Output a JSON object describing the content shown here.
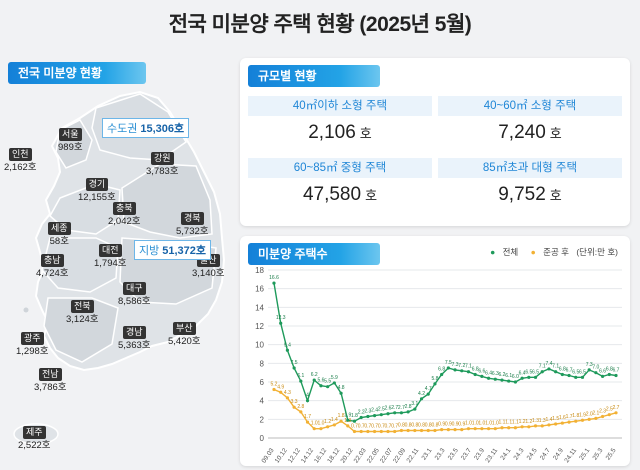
{
  "title": "전국 미분양 주택 현황  (2025년 5월)",
  "left_label": "전국 미분양 현황",
  "map": {
    "callouts": [
      {
        "name": "수도권",
        "value": "15,306호"
      },
      {
        "name": "지방",
        "value": "51,372호"
      }
    ],
    "regions": [
      {
        "name": "서울",
        "value": "989호"
      },
      {
        "name": "인천",
        "value": "2,162호"
      },
      {
        "name": "경기",
        "value": "12,155호"
      },
      {
        "name": "강원",
        "value": "3,783호"
      },
      {
        "name": "충북",
        "value": "2,042호"
      },
      {
        "name": "세종",
        "value": "58호"
      },
      {
        "name": "충남",
        "value": "4,724호"
      },
      {
        "name": "대전",
        "value": "1,794호"
      },
      {
        "name": "경북",
        "value": "5,732호"
      },
      {
        "name": "대구",
        "value": "8,586호"
      },
      {
        "name": "전북",
        "value": "3,124호"
      },
      {
        "name": "울산",
        "value": "3,140호"
      },
      {
        "name": "경남",
        "value": "5,363호"
      },
      {
        "name": "부산",
        "value": "5,420호"
      },
      {
        "name": "광주",
        "value": "1,298호"
      },
      {
        "name": "전남",
        "value": "3,786호"
      },
      {
        "name": "제주",
        "value": "2,522호"
      }
    ]
  },
  "size_card": {
    "title": "규모별 현황",
    "cells": [
      {
        "label": "40㎡이하 소형 주택",
        "value": "2,106",
        "unit": "호"
      },
      {
        "label": "40~60㎡ 소형 주택",
        "value": "7,240",
        "unit": "호"
      },
      {
        "label": "60~85㎡ 중형 주택",
        "value": "47,580",
        "unit": "호"
      },
      {
        "label": "85㎡초과 대형 주택",
        "value": "9,752",
        "unit": "호"
      }
    ]
  },
  "chart_card": {
    "title": "미분양 주택수",
    "legend_total": "전체",
    "legend_completed": "준공 후",
    "unit_note": "(단위:만 호)"
  },
  "colors": {
    "total": "#1e9a5b",
    "completed": "#f2b134",
    "accent": "#1f86d6"
  },
  "chart_data": {
    "type": "line",
    "ylim": [
      0,
      18
    ],
    "yticks": [
      0,
      2,
      4,
      6,
      8,
      10,
      12,
      14,
      16,
      18
    ],
    "x_ticks": [
      "09.03",
      "10.12",
      "12.12",
      "14.12",
      "16.12",
      "18.12",
      "20.12",
      "22.03",
      "22.05",
      "22.07",
      "22.09",
      "22.11",
      "23.1",
      "23.3",
      "23.5",
      "23.7",
      "23.9",
      "23.11",
      "24.1",
      "24.3",
      "24.5",
      "24.7",
      "24.9",
      "24.11",
      "25.1",
      "25.3",
      "25.5"
    ],
    "series": [
      {
        "name": "전체",
        "labels": [
          "16.6",
          "12.3",
          "9.4",
          "7.5",
          "6.1",
          "4",
          "6.2",
          "5.6",
          "5.5",
          "5.9",
          "4.8",
          "1.9",
          "1.8",
          "2.2",
          "2.3",
          "2.4",
          "2.5",
          "2.6",
          "2.7",
          "2.7",
          "2.8",
          "3.1",
          "4.2",
          "4.7",
          "5.8",
          "6.8",
          "7.5",
          "7.3",
          "7.2",
          "7.1",
          "6.8",
          "6.6",
          "6.4",
          "6.3",
          "6.2",
          "6.1",
          "6.0",
          "6.4",
          "6.5",
          "6.5",
          "7.1",
          "7.4",
          "7.1",
          "6.8",
          "6.7",
          "6.5",
          "6.5",
          "7.3",
          "7.0",
          "6.6",
          "6.8",
          "6.7"
        ],
        "values": [
          16.6,
          12.3,
          9.4,
          7.5,
          6.1,
          4.0,
          6.2,
          5.6,
          5.5,
          5.9,
          4.8,
          1.9,
          1.8,
          2.2,
          2.3,
          2.4,
          2.5,
          2.6,
          2.7,
          2.7,
          2.8,
          3.1,
          4.2,
          4.7,
          5.8,
          6.8,
          7.5,
          7.3,
          7.2,
          7.1,
          6.8,
          6.6,
          6.4,
          6.3,
          6.2,
          6.1,
          6.0,
          6.4,
          6.5,
          6.5,
          7.1,
          7.4,
          7.1,
          6.8,
          6.7,
          6.5,
          6.5,
          7.3,
          7.0,
          6.6,
          6.8,
          6.7
        ]
      },
      {
        "name": "준공 후",
        "labels": [
          "5.2",
          "4.9",
          "4.3",
          "3.3",
          "2.8",
          "1.7",
          "1.0",
          "1.0",
          "1.2",
          "1.4",
          "1.8",
          "1.3",
          "0.7",
          "0.7",
          "0.7",
          "0.7",
          "0.7",
          "0.7",
          "0.7",
          "0.8",
          "0.8",
          "0.8",
          "0.8",
          "0.8",
          "0.8",
          "0.9",
          "0.9",
          "0.9",
          "0.9",
          "1.0",
          "1.0",
          "1.0",
          "1.0",
          "1.0",
          "1.1",
          "1.1",
          "1.1",
          "1.2",
          "1.2",
          "1.3",
          "1.3",
          "1.4",
          "1.5",
          "1.6",
          "1.7",
          "1.8",
          "1.9",
          "2.0",
          "2.1",
          "2.3",
          "2.5",
          "2.7"
        ],
        "values": [
          5.2,
          4.9,
          4.3,
          3.3,
          2.8,
          1.7,
          1.0,
          1.0,
          1.2,
          1.4,
          1.8,
          1.3,
          0.7,
          0.7,
          0.7,
          0.7,
          0.7,
          0.7,
          0.7,
          0.8,
          0.8,
          0.8,
          0.8,
          0.8,
          0.8,
          0.9,
          0.9,
          0.9,
          0.9,
          1.0,
          1.0,
          1.0,
          1.0,
          1.0,
          1.1,
          1.1,
          1.1,
          1.2,
          1.2,
          1.3,
          1.3,
          1.4,
          1.5,
          1.6,
          1.7,
          1.8,
          1.9,
          2.0,
          2.1,
          2.3,
          2.5,
          2.7
        ]
      }
    ]
  }
}
